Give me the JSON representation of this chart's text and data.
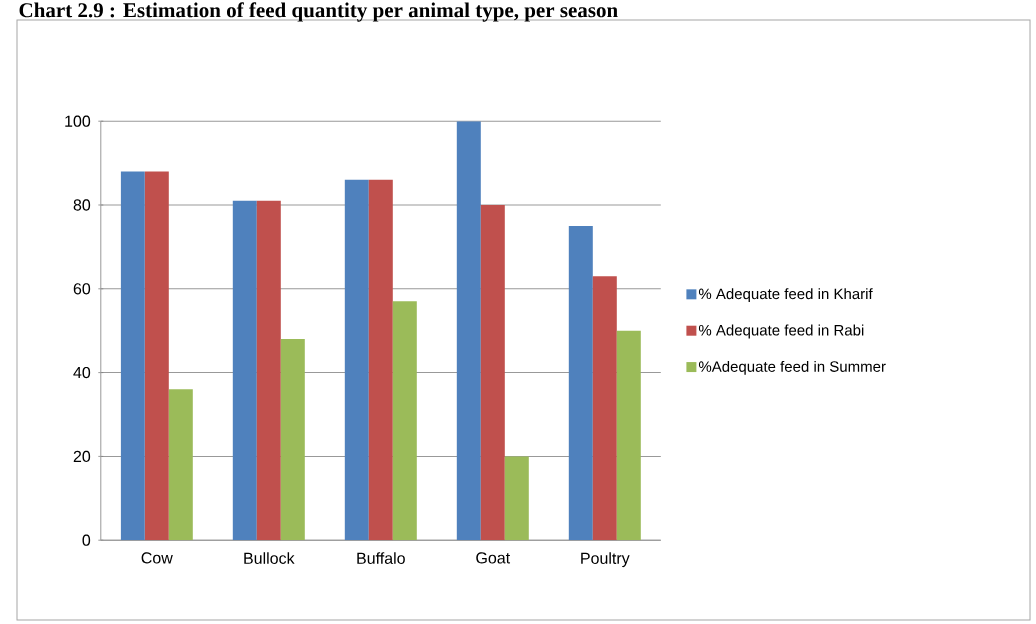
{
  "chart_data": {
    "type": "bar",
    "title": "Chart 2.9 : Estimation of feed quantity per animal type, per season",
    "categories": [
      "Cow",
      "Bullock",
      "Buffalo",
      "Goat",
      "Poultry"
    ],
    "series": [
      {
        "name": "% Adequate feed in Kharif",
        "color": "#4f81bd",
        "values": [
          88,
          81,
          86,
          100,
          75
        ]
      },
      {
        "name": "% Adequate feed in Rabi",
        "color": "#c0504d",
        "values": [
          88,
          81,
          86,
          80,
          63
        ]
      },
      {
        "name": "%Adequate feed in Summer",
        "color": "#9bbb59",
        "values": [
          36,
          48,
          57,
          20,
          50
        ]
      }
    ],
    "ylim": [
      0,
      100
    ],
    "yticks": [
      0,
      20,
      40,
      60,
      80,
      100
    ],
    "grid": "y",
    "legend": "right"
  }
}
